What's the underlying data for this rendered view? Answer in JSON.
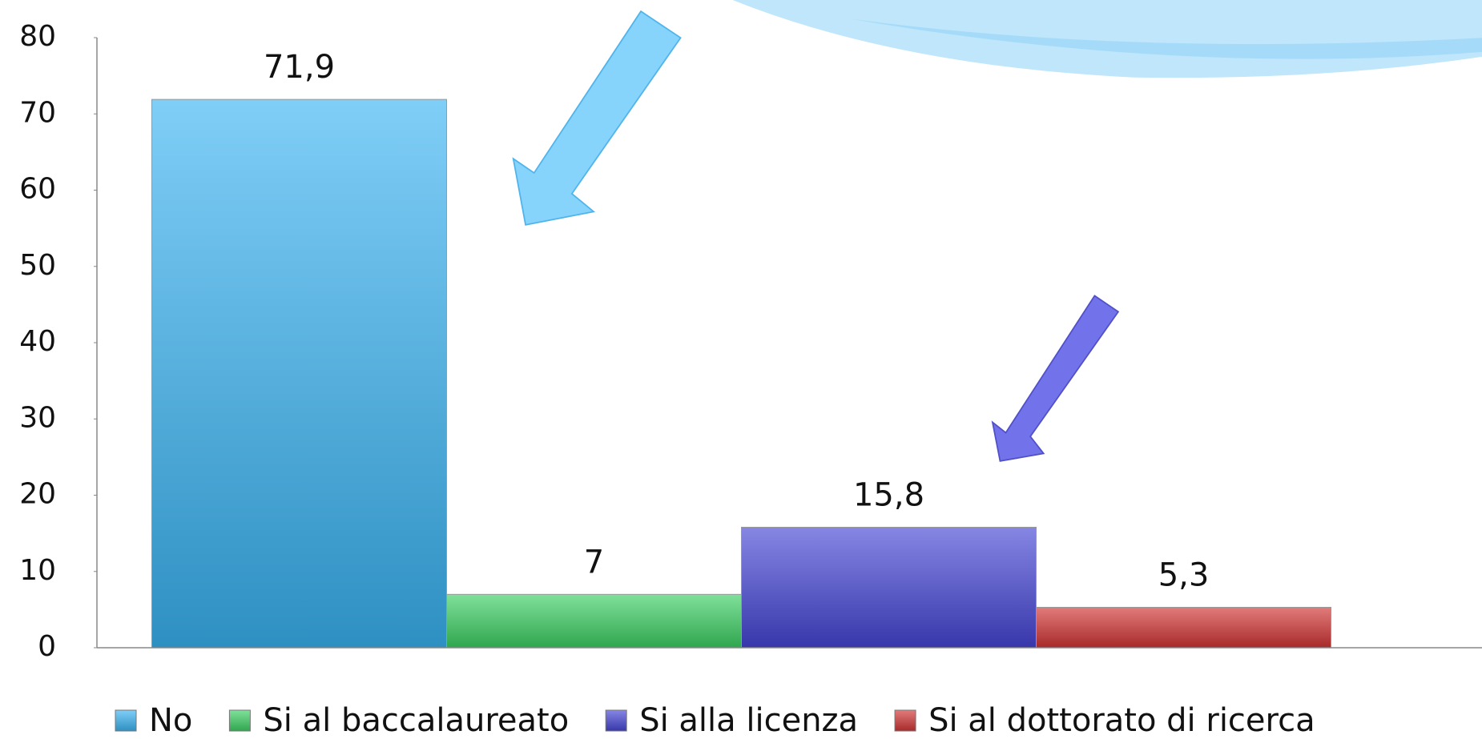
{
  "chart_data": {
    "type": "bar",
    "categories": [
      null
    ],
    "series": [
      {
        "name": "No",
        "color": "#3ab4f2",
        "values": [
          71.9
        ],
        "value_labels": [
          "71,9"
        ]
      },
      {
        "name": "Si al baccalaureato",
        "color": "#3ccf63",
        "values": [
          7
        ]
      },
      {
        "name": "Si alla licenza",
        "color": "#4545d6",
        "values": [
          15.8
        ],
        "value_labels": [
          "15,8"
        ]
      },
      {
        "name": "Si al dottorato di ricerca",
        "color": "#d23434",
        "values": [
          5.3
        ],
        "value_labels": [
          "5,3"
        ]
      }
    ],
    "ylim": [
      0,
      80
    ],
    "yticks": [
      0,
      10,
      20,
      30,
      40,
      50,
      60,
      70,
      80
    ],
    "grid": false,
    "legend": "bottom"
  }
}
